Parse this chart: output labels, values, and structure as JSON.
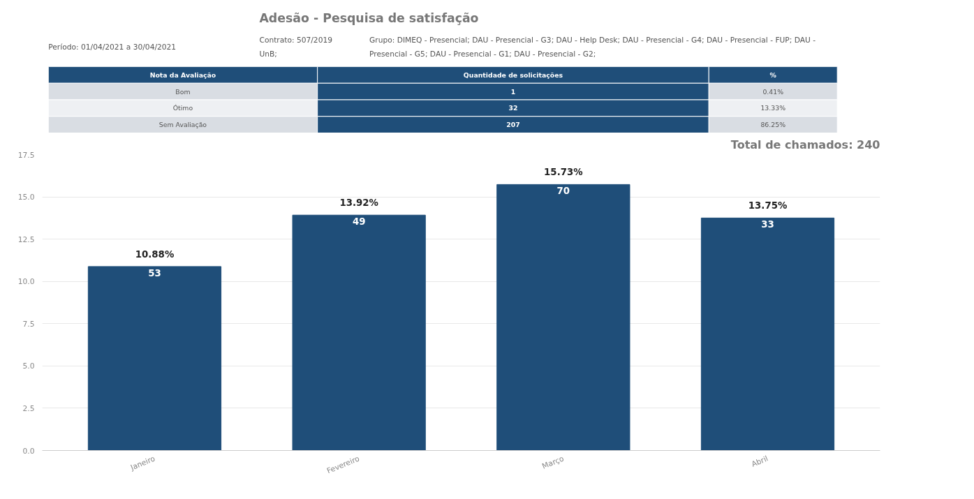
{
  "chart_data": [
    {
      "type": "other",
      "title": "Adesão - Pesquisa de satisfação",
      "annotations": [
        "Período: 01/04/2021 a 30/04/2021",
        "Contrato: 507/2019",
        "UnB;",
        "Grupo: DIMEQ - Presencial; DAU - Presencial - G3; DAU - Help Desk; DAU - Presencial - G4; DAU - Presencial - FUP; DAU - Presencial - G5; DAU - Presencial - G1; DAU - Presencial - G2;"
      ]
    },
    {
      "type": "other",
      "annotations": [
        "Nota da Avaliação",
        "Quantidade de solicitações",
        "%",
        "Bom",
        "1",
        "0.41%",
        "Ótimo",
        "32",
        "13.33%",
        "Sem Avaliação",
        "207",
        "86.25%"
      ]
    },
    {
      "type": "bar",
      "categories": [
        "Janeiro",
        "Fevereiro",
        "Março",
        "Abril"
      ],
      "values": [
        10.88,
        13.92,
        15.73,
        13.75
      ],
      "color": "#1f4e79",
      "value_labels": [
        "10.88%",
        "13.92%",
        "15.73%",
        "13.75%"
      ],
      "annotations": [
        "Total de chamados: 240",
        {
          "text": "53",
          "x": "Janeiro",
          "y": 10.88
        },
        {
          "text": "49",
          "x": "Fevereiro",
          "y": 13.92
        },
        {
          "text": "70",
          "x": "Março",
          "y": 15.73
        },
        {
          "text": "33",
          "x": "Abril",
          "y": 13.75
        }
      ],
      "ylim": [
        0,
        17.5
      ],
      "yticks": [
        {
          "value": 0,
          "label": "0.0"
        },
        {
          "value": 2.5,
          "label": "2.5"
        },
        {
          "value": 5,
          "label": "5.0"
        },
        {
          "value": 7.5,
          "label": "7.5"
        },
        {
          "value": 10,
          "label": "10.0"
        },
        {
          "value": 12.5,
          "label": "12.5"
        },
        {
          "value": 15,
          "label": "15.0"
        },
        {
          "value": 17.5,
          "label": "17.5"
        }
      ],
      "grid": "y"
    }
  ]
}
